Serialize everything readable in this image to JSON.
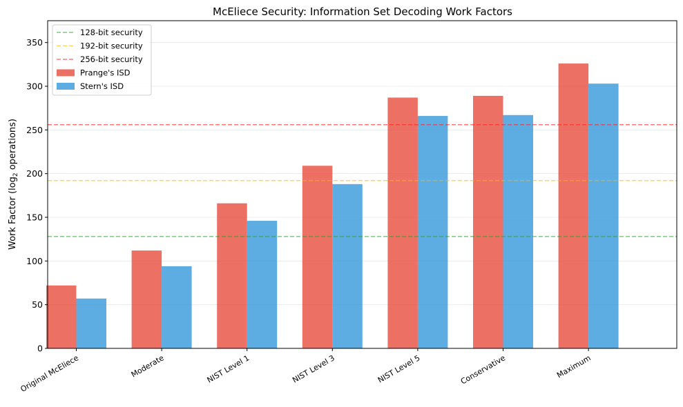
{
  "chart_data": {
    "type": "bar",
    "title": "McEliece Security: Information Set Decoding Work Factors",
    "xlabel": "",
    "ylabel_prefix": "Work Factor (log",
    "ylabel_sub": "2",
    "ylabel_suffix": " operations)",
    "ylim": [
      0,
      375
    ],
    "yticks": [
      0,
      50,
      100,
      150,
      200,
      250,
      300,
      350
    ],
    "grid": "y",
    "legend_position": "top-left",
    "categories": [
      "Original McEliece",
      "Moderate",
      "NIST Level 1",
      "NIST Level 3",
      "NIST Level 5",
      "Conservative",
      "Maximum"
    ],
    "series": [
      {
        "name": "Prange's ISD",
        "color": "#e74c3c",
        "values": [
          72,
          112,
          166,
          209,
          287,
          289,
          326
        ]
      },
      {
        "name": "Stern's ISD",
        "color": "#3498db",
        "values": [
          57,
          94,
          146,
          188,
          266,
          267,
          303
        ]
      }
    ],
    "thresholds": [
      {
        "name": "128-bit security",
        "value": 128,
        "color": "#2ca02c"
      },
      {
        "name": "192-bit security",
        "value": 192,
        "color": "#f5b800"
      },
      {
        "name": "256-bit security",
        "value": 256,
        "color": "#ff2020"
      }
    ]
  }
}
